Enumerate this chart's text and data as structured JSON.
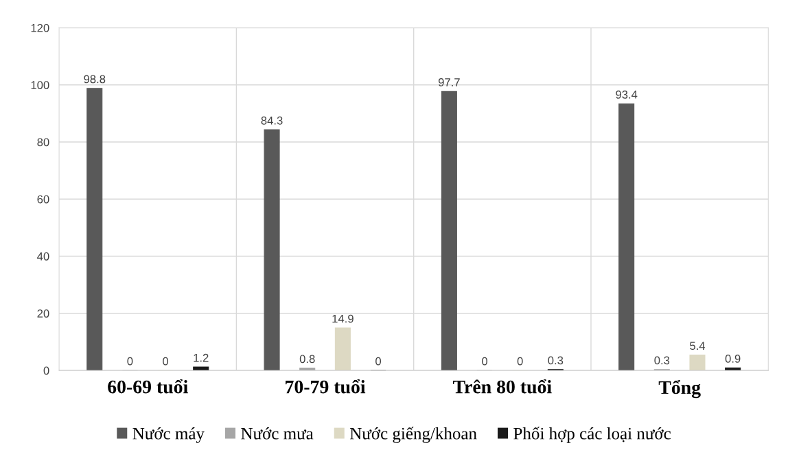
{
  "chart_data": {
    "type": "bar",
    "categories": [
      "60-69 tuổi",
      "70-79 tuổi",
      "Trên 80 tuổi",
      "Tổng"
    ],
    "series": [
      {
        "name": "Nước máy",
        "color": "#595959",
        "values": [
          98.8,
          84.3,
          97.7,
          93.4
        ]
      },
      {
        "name": "Nước mưa",
        "color": "#a6a6a6",
        "values": [
          0,
          0.8,
          0,
          0.3
        ]
      },
      {
        "name": "Nước giếng/khoan",
        "color": "#ddd9c3",
        "values": [
          0,
          14.9,
          0,
          5.4
        ]
      },
      {
        "name": "Phối hợp các loại nước",
        "color": "#1a1a1a",
        "values": [
          1.2,
          0,
          0.3,
          0.9
        ]
      }
    ],
    "ylim": [
      0,
      120
    ],
    "yticks": [
      0,
      20,
      40,
      60,
      80,
      100,
      120
    ],
    "grid": "y",
    "legend": "bottom",
    "data_labels": true
  }
}
